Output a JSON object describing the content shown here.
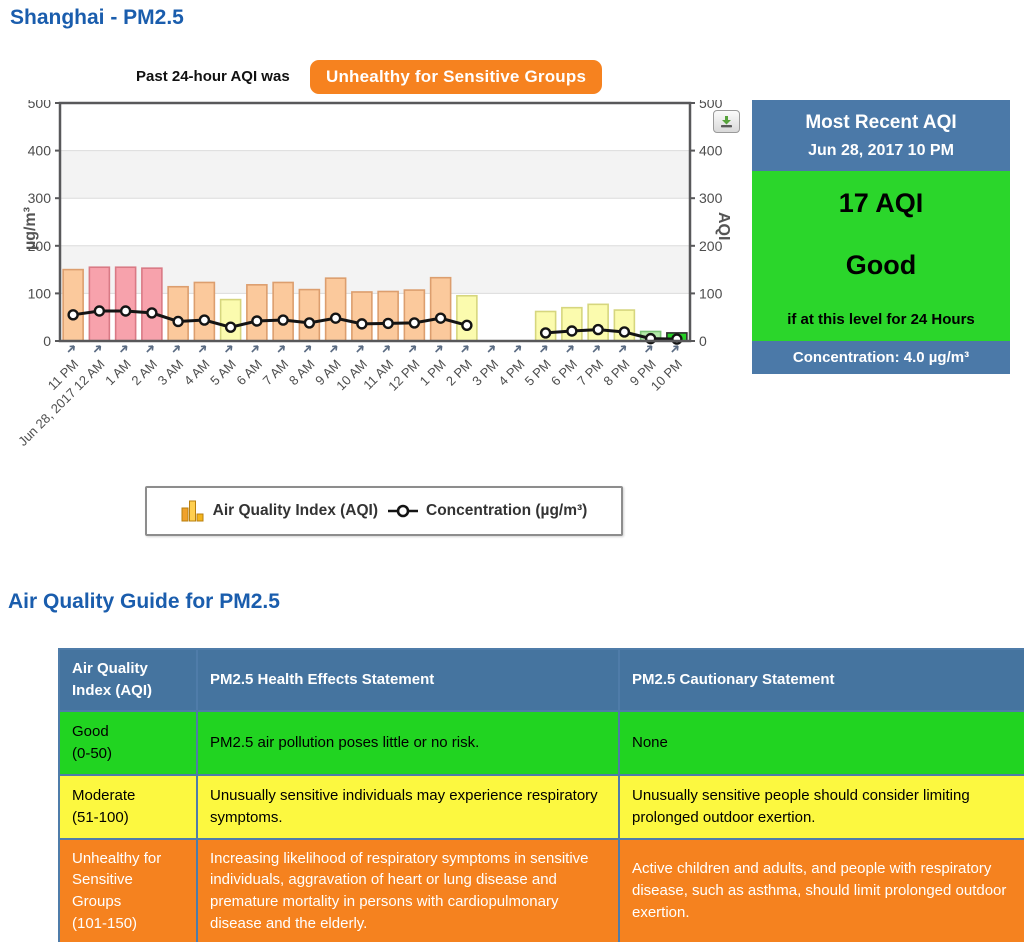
{
  "colors": {
    "heading": "#1a5dad",
    "badge": "#f6821f",
    "panelblue": "#4b79a8",
    "panelgreen": "#2bd62b",
    "thblue": "#45749f",
    "tborder": "#4f7ca9"
  },
  "page": {
    "title": "Shanghai - PM2.5",
    "subtitle_prefix": "Past 24-hour AQI was",
    "subtitle_badge": "Unhealthy for Sensitive Groups"
  },
  "most_recent": {
    "title": "Most Recent AQI",
    "datetime": "Jun 28, 2017 10 PM",
    "aqi": "17 AQI",
    "category": "Good",
    "note": "if at this level for 24 Hours",
    "concentration": "Concentration: 4.0 µg/m³"
  },
  "chart_data": {
    "type": "bar+line",
    "title": "Past 24-hour AQI",
    "x": [
      "11 PM",
      "Jun 28, 2017 12 AM",
      "1 AM",
      "2 AM",
      "3 AM",
      "4 AM",
      "5 AM",
      "6 AM",
      "7 AM",
      "8 AM",
      "9 AM",
      "10 AM",
      "11 AM",
      "12 PM",
      "1 PM",
      "2 PM",
      "3 PM",
      "4 PM",
      "5 PM",
      "6 PM",
      "7 PM",
      "8 PM",
      "9 PM",
      "10 PM"
    ],
    "series": [
      {
        "name": "Air Quality Index (AQI)",
        "type": "bar",
        "values": [
          150,
          155,
          155,
          153,
          114,
          123,
          87,
          118,
          123,
          108,
          132,
          103,
          104,
          107,
          133,
          95,
          null,
          null,
          62,
          70,
          77,
          65,
          20,
          17
        ]
      },
      {
        "name": "Concentration (µg/m³)",
        "type": "line",
        "values": [
          55,
          63,
          63,
          59,
          41,
          44,
          29,
          42,
          44,
          38,
          48,
          36,
          37,
          38,
          48,
          33,
          null,
          null,
          17,
          21,
          24,
          19,
          5,
          4
        ]
      }
    ],
    "ylim": [
      0,
      500
    ],
    "yticks": [
      0,
      100,
      200,
      300,
      400,
      500
    ],
    "ylabel_left": "µg/m³",
    "ylabel_right": "AQI",
    "grid": true,
    "legend_position": "bottom",
    "category_colors": {
      "good_recent": {
        "fill": "#26cf26",
        "stroke": "#2e2e2e"
      },
      "good": {
        "fill": "#b4eaa9",
        "stroke": "#7cc476"
      },
      "moderate": {
        "fill": "#fbfbae",
        "stroke": "#d6d67e"
      },
      "unhealthy_sensitive": {
        "fill": "#fbc99c",
        "stroke": "#dc9e6e"
      },
      "unhealthy": {
        "fill": "#f7a2ac",
        "stroke": "#d97a85"
      }
    },
    "style": {
      "band": "#f3f3f3",
      "gridline": "#dcdcdc",
      "frame": "#58585a",
      "line": "#141414",
      "tick_text": "#4d4d4d"
    }
  },
  "guide": {
    "heading": "Air Quality Guide for PM2.5",
    "columns": [
      "Air Quality Index (AQI)",
      "PM2.5 Health Effects Statement",
      "PM2.5 Cautionary Statement"
    ],
    "rows": [
      {
        "category": "Good",
        "range": "(0-50)",
        "health": "PM2.5 air pollution poses little or no risk.",
        "caution": "None",
        "bg": "#21d421",
        "fg": "#000000"
      },
      {
        "category": "Moderate",
        "range": "(51-100)",
        "health": "Unusually sensitive individuals may experience respiratory symptoms.",
        "caution": "Unusually sensitive people should consider limiting prolonged outdoor exertion.",
        "bg": "#fcf840",
        "fg": "#000000"
      },
      {
        "category": "Unhealthy for Sensitive Groups",
        "range": "(101-150)",
        "health": "Increasing likelihood of respiratory symptoms in sensitive individuals, aggravation of heart or lung disease and premature mortality in persons with cardiopulmonary disease and the elderly.",
        "caution": "Active children and adults, and people with respiratory disease, such as asthma, should limit prolonged outdoor exertion.",
        "bg": "#f5821f",
        "fg": "#ffffff"
      }
    ]
  }
}
